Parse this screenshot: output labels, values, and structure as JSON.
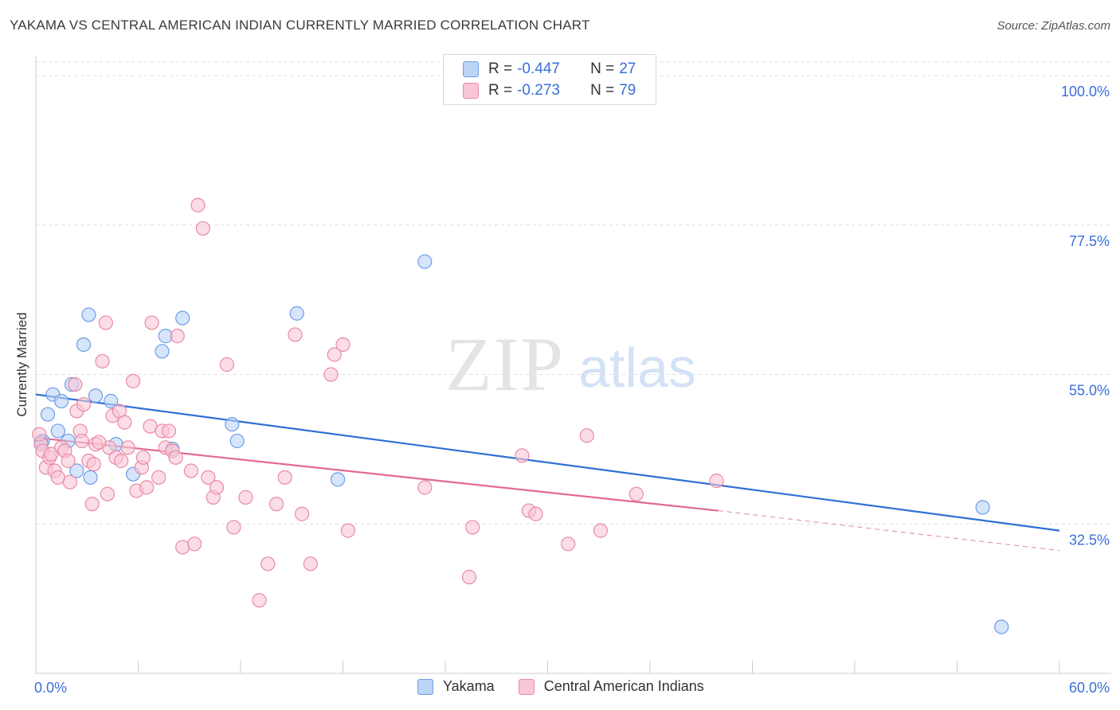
{
  "title": "YAKAMA VS CENTRAL AMERICAN INDIAN CURRENTLY MARRIED CORRELATION CHART",
  "source": "Source: ZipAtlas.com",
  "watermark": {
    "zip": "ZIP",
    "atlas": "atlas"
  },
  "legend": {
    "r_label": "R =",
    "n_label": "N =",
    "series": [
      {
        "name": "Yakama",
        "r": "-0.447",
        "n": "27",
        "fill": "#bcd4f6",
        "stroke": "#6d9de6"
      },
      {
        "name": "Central American Indians",
        "r": "-0.273",
        "n": "79",
        "fill": "#f8c6d5",
        "stroke": "#e98aa8"
      }
    ]
  },
  "colors": {
    "blue_line": "#2f6fd6",
    "pink_line": "#e06a92",
    "axis_text": "#3a6fd8",
    "grid": "#dddddd"
  },
  "chart_data": {
    "type": "scatter",
    "xlabel": "",
    "ylabel": "Currently Married",
    "xlim": [
      0,
      60
    ],
    "ylim": [
      10,
      103
    ],
    "x_tick_labels": [
      "0.0%",
      "60.0%"
    ],
    "y_ticks": [
      32.5,
      55.0,
      77.5,
      100.0
    ],
    "y_tick_labels": [
      "32.5%",
      "55.0%",
      "77.5%",
      "100.0%"
    ],
    "grid": true,
    "series": [
      {
        "name": "Yakama",
        "points": [
          [
            0.4,
            45.0
          ],
          [
            0.7,
            49.0
          ],
          [
            1.0,
            52.0
          ],
          [
            1.3,
            46.5
          ],
          [
            1.5,
            51.0
          ],
          [
            1.9,
            45.0
          ],
          [
            2.1,
            53.5
          ],
          [
            2.4,
            40.5
          ],
          [
            2.8,
            59.5
          ],
          [
            3.1,
            64.0
          ],
          [
            3.2,
            39.5
          ],
          [
            3.5,
            51.8
          ],
          [
            4.4,
            51.0
          ],
          [
            4.7,
            44.5
          ],
          [
            5.7,
            40.0
          ],
          [
            7.4,
            58.5
          ],
          [
            7.6,
            60.8
          ],
          [
            8.0,
            43.8
          ],
          [
            8.6,
            63.5
          ],
          [
            11.5,
            47.5
          ],
          [
            11.8,
            45.0
          ],
          [
            15.3,
            64.2
          ],
          [
            17.7,
            39.2
          ],
          [
            22.8,
            72.0
          ],
          [
            55.5,
            35.0
          ],
          [
            56.6,
            17.0
          ],
          [
            0.3,
            44.8
          ]
        ],
        "trend": {
          "x": [
            0,
            60
          ],
          "y": [
            52.0,
            31.5
          ]
        }
      },
      {
        "name": "Central American Indians",
        "points": [
          [
            0.3,
            44.5
          ],
          [
            0.4,
            43.5
          ],
          [
            0.6,
            41.0
          ],
          [
            0.8,
            42.5
          ],
          [
            0.9,
            43.0
          ],
          [
            1.1,
            40.5
          ],
          [
            1.3,
            39.5
          ],
          [
            1.5,
            44.0
          ],
          [
            1.7,
            43.5
          ],
          [
            1.9,
            42.0
          ],
          [
            2.0,
            38.8
          ],
          [
            2.3,
            53.5
          ],
          [
            2.4,
            49.5
          ],
          [
            2.6,
            46.5
          ],
          [
            2.7,
            45.0
          ],
          [
            2.8,
            50.5
          ],
          [
            3.1,
            42.0
          ],
          [
            3.3,
            35.5
          ],
          [
            3.4,
            41.5
          ],
          [
            3.5,
            44.5
          ],
          [
            3.9,
            57.0
          ],
          [
            4.2,
            37.0
          ],
          [
            4.3,
            44.0
          ],
          [
            4.5,
            48.8
          ],
          [
            4.7,
            42.5
          ],
          [
            4.9,
            49.5
          ],
          [
            5.0,
            42.0
          ],
          [
            5.2,
            47.8
          ],
          [
            5.4,
            44.0
          ],
          [
            5.7,
            54.0
          ],
          [
            5.9,
            37.5
          ],
          [
            6.2,
            41.0
          ],
          [
            6.3,
            42.5
          ],
          [
            6.5,
            38.0
          ],
          [
            6.7,
            47.2
          ],
          [
            7.2,
            39.5
          ],
          [
            7.4,
            46.5
          ],
          [
            7.6,
            44.0
          ],
          [
            7.8,
            46.5
          ],
          [
            8.0,
            43.5
          ],
          [
            8.2,
            42.5
          ],
          [
            8.3,
            60.8
          ],
          [
            8.6,
            29.0
          ],
          [
            9.1,
            40.5
          ],
          [
            9.3,
            29.5
          ],
          [
            9.5,
            80.5
          ],
          [
            9.8,
            77.0
          ],
          [
            10.1,
            39.5
          ],
          [
            10.4,
            36.5
          ],
          [
            10.6,
            38.0
          ],
          [
            11.2,
            56.5
          ],
          [
            11.6,
            32.0
          ],
          [
            12.3,
            36.5
          ],
          [
            13.1,
            21.0
          ],
          [
            13.6,
            26.5
          ],
          [
            14.1,
            35.5
          ],
          [
            14.6,
            39.5
          ],
          [
            15.2,
            61.0
          ],
          [
            15.6,
            34.0
          ],
          [
            16.1,
            26.5
          ],
          [
            17.3,
            55.0
          ],
          [
            17.5,
            58.0
          ],
          [
            18.0,
            59.5
          ],
          [
            18.3,
            31.5
          ],
          [
            22.8,
            38.0
          ],
          [
            25.4,
            24.5
          ],
          [
            25.6,
            32.0
          ],
          [
            28.5,
            42.8
          ],
          [
            28.9,
            34.5
          ],
          [
            29.3,
            34.0
          ],
          [
            31.2,
            29.5
          ],
          [
            32.3,
            45.8
          ],
          [
            33.1,
            31.5
          ],
          [
            35.2,
            37.0
          ],
          [
            39.9,
            39.0
          ],
          [
            0.2,
            46.0
          ],
          [
            3.7,
            44.8
          ],
          [
            6.8,
            62.8
          ],
          [
            4.1,
            62.8
          ]
        ],
        "trend": {
          "x": [
            0,
            40
          ],
          "y": [
            45.5,
            34.5
          ]
        },
        "trend_dashed": {
          "x": [
            40,
            60
          ],
          "y": [
            34.5,
            28.5
          ]
        }
      }
    ]
  }
}
